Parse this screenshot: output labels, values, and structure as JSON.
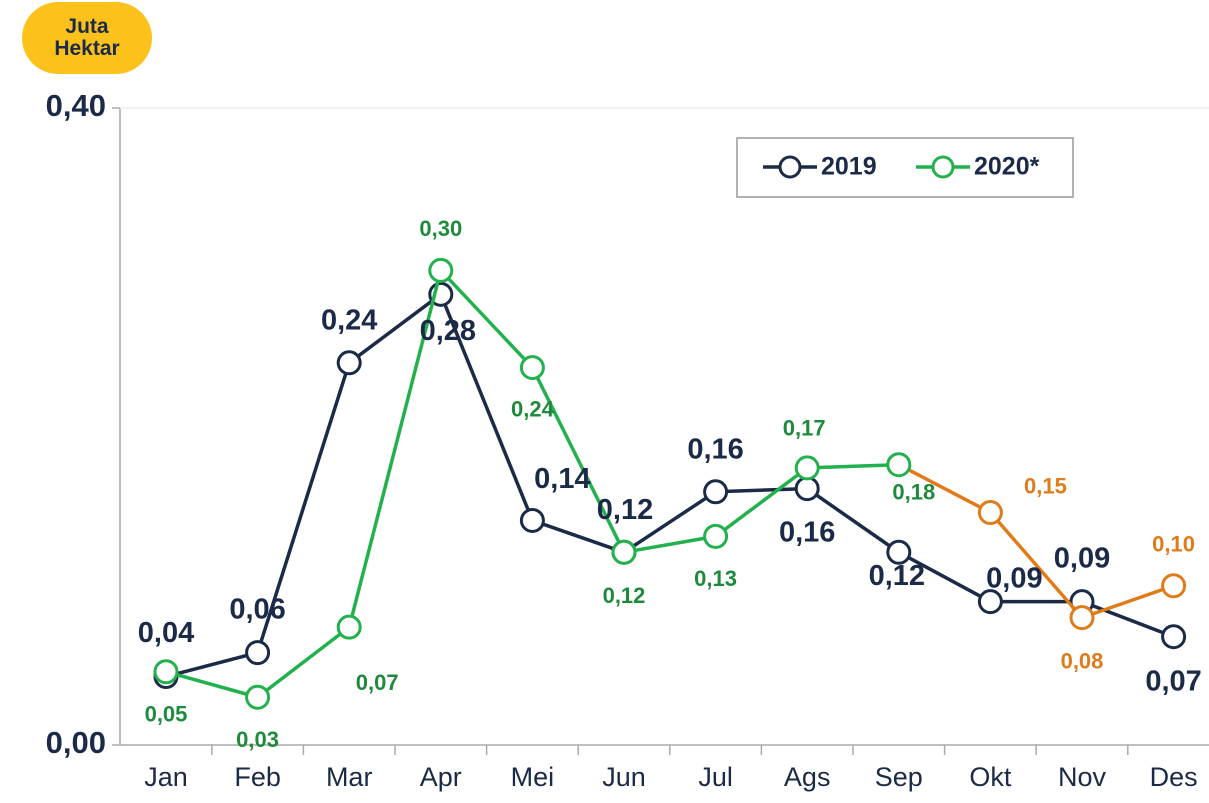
{
  "chart_data": {
    "type": "line",
    "unit_label": "Juta Hektar",
    "categories": [
      "Jan",
      "Feb",
      "Mar",
      "Apr",
      "Mei",
      "Jun",
      "Jul",
      "Ags",
      "Sep",
      "Okt",
      "Nov",
      "Des"
    ],
    "series": [
      {
        "name": "2019",
        "color": "#1b2a47",
        "label_color": "#1b2a47",
        "values": [
          0.043,
          0.058,
          0.24,
          0.283,
          0.141,
          0.121,
          0.159,
          0.161,
          0.121,
          0.09,
          0.09,
          0.068
        ],
        "value_labels": [
          "0,04",
          "0,06",
          "0,24",
          "0,28",
          "0,14",
          "0,12",
          "0,16",
          "0,16",
          "0,12",
          "0,09",
          "0,09",
          "0,07"
        ]
      },
      {
        "name": "2020*",
        "color": "#22b14c",
        "label_color": "#1e8a3c",
        "point_colors": [
          "#22b14c",
          "#22b14c",
          "#22b14c",
          "#22b14c",
          "#22b14c",
          "#22b14c",
          "#22b14c",
          "#22b14c",
          "#22b14c",
          "#e07b1a",
          "#e07b1a",
          "#e07b1a"
        ],
        "values": [
          0.046,
          0.03,
          0.074,
          0.298,
          0.237,
          0.121,
          0.131,
          0.174,
          0.176,
          0.146,
          0.08,
          0.1
        ],
        "value_labels": [
          "0,05",
          "0,03",
          "0,07",
          "0,30",
          "0,24",
          "0,12",
          "0,13",
          "0,17",
          "0,18",
          "0,15",
          "0,08",
          "0,10"
        ]
      }
    ],
    "ylim": [
      0,
      0.4
    ],
    "yticks": [
      {
        "value": 0,
        "label": "0,00"
      },
      {
        "value": 0.4,
        "label": "0,40"
      }
    ],
    "legend": "top-right"
  }
}
